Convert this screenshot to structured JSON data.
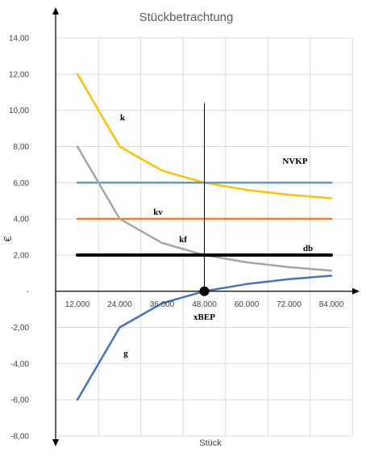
{
  "chart_data": {
    "type": "line",
    "title": "Stückbetrachtung",
    "xlabel": "Stück",
    "ylabel": "€",
    "x": [
      12000,
      24000,
      36000,
      48000,
      60000,
      72000,
      84000
    ],
    "x_tick_labels": [
      "12.000",
      "24.000",
      "36.000",
      "48.000",
      "60.000",
      "72.000",
      "84.000"
    ],
    "ylim": [
      -8,
      14
    ],
    "y_ticks": [
      -8,
      -6,
      -4,
      -2,
      0,
      2,
      4,
      6,
      8,
      10,
      12,
      14
    ],
    "y_tick_labels": [
      "-8,00",
      "-6,00",
      "-4,00",
      "-2,00",
      "-",
      "2,00",
      "4,00",
      "6,00",
      "8,00",
      "10,00",
      "12,00",
      "14,00"
    ],
    "grid": true,
    "series": [
      {
        "name": "k",
        "color": "#FFC000",
        "values": [
          12.0,
          8.0,
          6.67,
          6.0,
          5.6,
          5.33,
          5.14
        ]
      },
      {
        "name": "NVKP",
        "color": "#5B9BD5",
        "values": [
          6,
          6,
          6,
          6,
          6,
          6,
          6
        ]
      },
      {
        "name": "kv",
        "color": "#ED7D31",
        "values": [
          4,
          4,
          4,
          4,
          4,
          4,
          4
        ]
      },
      {
        "name": "kf",
        "color": "#A5A5A5",
        "values": [
          8.0,
          4.0,
          2.67,
          2.0,
          1.6,
          1.33,
          1.14
        ]
      },
      {
        "name": "db",
        "color": "#000000",
        "values": [
          2,
          2,
          2,
          2,
          2,
          2,
          2
        ]
      },
      {
        "name": "g",
        "color": "#4472C4",
        "values": [
          -6.0,
          -2.0,
          -0.67,
          0.0,
          0.4,
          0.67,
          0.86
        ]
      }
    ],
    "break_even": {
      "label": "xBEP",
      "x": 48000,
      "y": 0
    }
  }
}
